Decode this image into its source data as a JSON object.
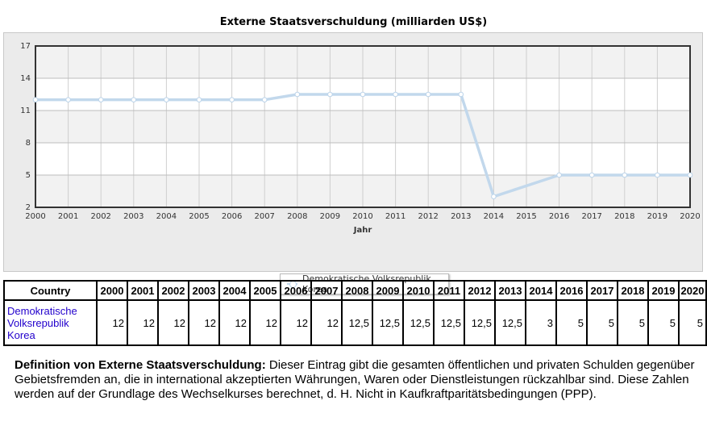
{
  "chart_data": {
    "type": "line",
    "title": "Externe Staatsverschuldung (milliarden US$)",
    "xlabel": "Jahr",
    "ylabel": "",
    "ylim": [
      2,
      17
    ],
    "yticks": [
      "2",
      "5",
      "8",
      "11",
      "14",
      "17"
    ],
    "categories": [
      "2000",
      "2001",
      "2002",
      "2003",
      "2004",
      "2005",
      "2006",
      "2007",
      "2008",
      "2009",
      "2010",
      "2011",
      "2012",
      "2013",
      "2014",
      "2015",
      "2016",
      "2017",
      "2018",
      "2019",
      "2020"
    ],
    "series": [
      {
        "name": "Demokratische Volksrepublik Korea",
        "x": [
          "2000",
          "2001",
          "2002",
          "2003",
          "2004",
          "2005",
          "2006",
          "2007",
          "2008",
          "2009",
          "2010",
          "2011",
          "2012",
          "2013",
          "2014",
          "2016",
          "2017",
          "2018",
          "2019",
          "2020"
        ],
        "values": [
          12,
          12,
          12,
          12,
          12,
          12,
          12,
          12,
          12.5,
          12.5,
          12.5,
          12.5,
          12.5,
          12.5,
          3,
          5,
          5,
          5,
          5,
          5
        ]
      }
    ],
    "grid": true,
    "legend": "bottom-center",
    "line_color": "#c2d8ec"
  },
  "table": {
    "header_country": "Country",
    "years": [
      "2000",
      "2001",
      "2002",
      "2003",
      "2004",
      "2005",
      "2006",
      "2007",
      "2008",
      "2009",
      "2010",
      "2011",
      "2012",
      "2013",
      "2014",
      "2016",
      "2017",
      "2018",
      "2019",
      "2020"
    ],
    "country_name": "Demokratische Volksrepublik Korea",
    "values": [
      "12",
      "12",
      "12",
      "12",
      "12",
      "12",
      "12",
      "12",
      "12,5",
      "12,5",
      "12,5",
      "12,5",
      "12,5",
      "12,5",
      "3",
      "5",
      "5",
      "5",
      "5",
      "5"
    ]
  },
  "definition": {
    "label": "Definition von Externe Staatsverschuldung:",
    "text": " Dieser Eintrag gibt die gesamten öffentlichen und privaten Schulden gegenüber Gebietsfremden an, die in international akzeptierten Währungen, Waren oder Dienstleistungen rückzahlbar sind. Diese Zahlen werden auf der Grundlage des Wechselkurses berechnet, d. H. Nicht in Kaufkraftparitätsbedingungen (PPP)."
  }
}
